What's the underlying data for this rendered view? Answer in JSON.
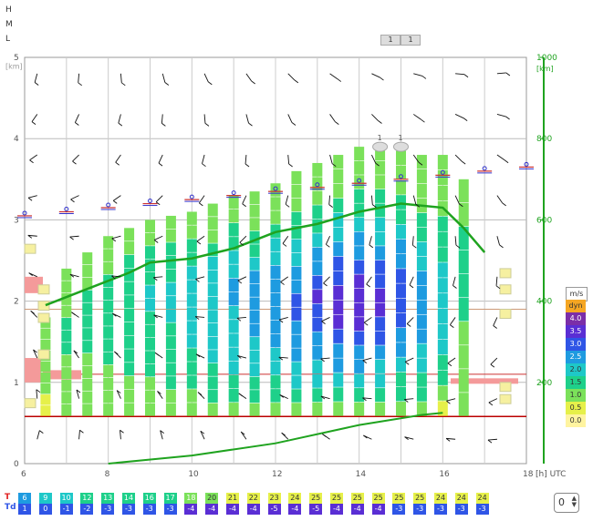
{
  "levels": {
    "h": "H",
    "m": "M",
    "l": "L"
  },
  "toggles": [
    "1",
    "1"
  ],
  "cloud_labels": [
    "1",
    "1"
  ],
  "chart_data": {
    "type": "bar",
    "left_axis": {
      "label": "[km]",
      "ticks": [
        "0",
        "1",
        "2",
        "3",
        "4",
        "5"
      ],
      "range": [
        0,
        5
      ]
    },
    "right_axis": {
      "label": "[km]",
      "ticks": [
        "200",
        "400",
        "600",
        "800",
        "1000"
      ],
      "range": [
        0,
        1000
      ],
      "color": "#1fa31f"
    },
    "x_axis": {
      "ticks": [
        "6",
        "8",
        "10",
        "12",
        "14",
        "16",
        "18"
      ],
      "unit": "[h] UTC",
      "range": [
        6,
        18
      ]
    },
    "wind_legend": {
      "title": "m/s",
      "entries": [
        {
          "label": "dyn",
          "color": "#f5a623"
        },
        {
          "label": "4.0",
          "color": "#7b2ea8"
        },
        {
          "label": "3.5",
          "color": "#5a2ed4"
        },
        {
          "label": "3.0",
          "color": "#2f55e6"
        },
        {
          "label": "2.5",
          "color": "#1e9be0"
        },
        {
          "label": "2.0",
          "color": "#1ec8c8"
        },
        {
          "label": "1.5",
          "color": "#1ed08a"
        },
        {
          "label": "1.0",
          "color": "#7be15a"
        },
        {
          "label": "0.5",
          "color": "#e6f04a"
        },
        {
          "label": "0.0",
          "color": "#fff4a0"
        }
      ]
    },
    "columns": [
      {
        "t": 6.5,
        "top": 1.8,
        "cells": [
          0,
          0,
          1,
          1,
          1,
          1,
          1,
          1,
          1
        ]
      },
      {
        "t": 7.0,
        "top": 2.4,
        "cells": [
          1,
          1,
          1,
          1,
          1,
          2,
          2,
          2,
          1,
          1,
          1,
          1
        ]
      },
      {
        "t": 7.5,
        "top": 2.6,
        "cells": [
          1,
          1,
          1,
          1,
          1,
          2,
          2,
          2,
          2,
          2,
          1,
          1,
          1
        ]
      },
      {
        "t": 8.0,
        "top": 2.8,
        "cells": [
          1,
          1,
          1,
          1,
          2,
          2,
          2,
          2,
          2,
          2,
          2,
          1,
          1,
          1
        ]
      },
      {
        "t": 8.5,
        "top": 2.9,
        "cells": [
          1,
          1,
          1,
          2,
          2,
          2,
          2,
          2,
          2,
          2,
          2,
          2,
          1,
          1
        ]
      },
      {
        "t": 9.0,
        "top": 3.0,
        "cells": [
          1,
          1,
          1,
          2,
          2,
          2,
          2,
          2,
          3,
          3,
          2,
          2,
          2,
          1,
          1
        ]
      },
      {
        "t": 9.5,
        "top": 3.05,
        "cells": [
          1,
          1,
          2,
          2,
          2,
          2,
          2,
          3,
          3,
          3,
          2,
          2,
          2,
          1,
          1
        ]
      },
      {
        "t": 10.0,
        "top": 3.1,
        "cells": [
          1,
          1,
          2,
          2,
          2,
          3,
          3,
          3,
          3,
          3,
          3,
          2,
          2,
          1,
          1
        ]
      },
      {
        "t": 10.5,
        "top": 3.2,
        "cells": [
          1,
          2,
          2,
          2,
          3,
          3,
          3,
          3,
          3,
          3,
          3,
          3,
          2,
          1,
          1,
          1
        ]
      },
      {
        "t": 11.0,
        "top": 3.3,
        "cells": [
          1,
          2,
          2,
          3,
          3,
          3,
          3,
          3,
          4,
          4,
          3,
          3,
          2,
          2,
          1,
          1
        ]
      },
      {
        "t": 11.5,
        "top": 3.35,
        "cells": [
          1,
          2,
          2,
          3,
          3,
          3,
          4,
          4,
          4,
          4,
          4,
          3,
          2,
          2,
          1,
          1,
          1
        ]
      },
      {
        "t": 12.0,
        "top": 3.45,
        "cells": [
          1,
          2,
          2,
          3,
          3,
          4,
          4,
          4,
          4,
          4,
          4,
          3,
          3,
          2,
          1,
          1,
          1
        ]
      },
      {
        "t": 12.5,
        "top": 3.6,
        "cells": [
          1,
          2,
          3,
          3,
          4,
          4,
          4,
          5,
          5,
          4,
          4,
          3,
          3,
          2,
          2,
          1,
          1,
          1
        ]
      },
      {
        "t": 13.0,
        "top": 3.7,
        "cells": [
          1,
          2,
          3,
          3,
          4,
          4,
          5,
          5,
          6,
          5,
          4,
          4,
          3,
          2,
          2,
          1,
          1,
          1
        ]
      },
      {
        "t": 13.5,
        "top": 3.8,
        "cells": [
          1,
          2,
          3,
          4,
          4,
          5,
          6,
          6,
          6,
          5,
          5,
          4,
          3,
          3,
          2,
          1,
          1,
          1
        ]
      },
      {
        "t": 14.0,
        "top": 3.9,
        "cells": [
          1,
          2,
          3,
          4,
          4,
          5,
          6,
          6,
          7,
          6,
          5,
          4,
          4,
          3,
          2,
          2,
          1,
          1,
          1
        ]
      },
      {
        "t": 14.5,
        "top": 3.9,
        "cells": [
          1,
          2,
          3,
          3,
          4,
          5,
          5,
          6,
          6,
          5,
          5,
          4,
          3,
          3,
          2,
          2,
          1,
          1,
          1
        ]
      },
      {
        "t": 15.0,
        "top": 3.85,
        "cells": [
          1,
          2,
          2,
          3,
          4,
          4,
          5,
          5,
          5,
          5,
          4,
          4,
          3,
          2,
          2,
          1,
          1,
          1
        ]
      },
      {
        "t": 15.5,
        "top": 3.8,
        "cells": [
          1,
          2,
          2,
          3,
          3,
          4,
          4,
          4,
          4,
          4,
          3,
          3,
          2,
          2,
          1,
          1,
          1,
          1
        ]
      },
      {
        "t": 16.0,
        "top": 3.8,
        "cells": [
          0,
          1,
          2,
          2,
          3,
          3,
          3,
          3,
          3,
          3,
          2,
          2,
          2,
          1,
          1,
          1,
          1
        ]
      },
      {
        "t": 16.5,
        "top": 3.5,
        "cells": [
          1,
          1,
          1,
          1,
          2,
          2,
          2,
          2,
          1,
          1
        ]
      }
    ],
    "surface_temp": {
      "label": "T",
      "values": [
        "6",
        "9",
        "10",
        "12",
        "13",
        "14",
        "16",
        "17",
        "18",
        "20",
        "21",
        "22",
        "23",
        "24",
        "25",
        "25",
        "25",
        "25",
        "25",
        "25",
        "24",
        "24",
        "24"
      ]
    },
    "dew_point": {
      "label": "Td",
      "values": [
        "1",
        "0",
        "-1",
        "-2",
        "-3",
        "-3",
        "-3",
        "-3",
        "-4",
        "-4",
        "-4",
        "-4",
        "-5",
        "-4",
        "-5",
        "-4",
        "-4",
        "-4",
        "-3",
        "-3",
        "-3",
        "-3",
        "-3"
      ]
    },
    "spinner_value": "0"
  }
}
